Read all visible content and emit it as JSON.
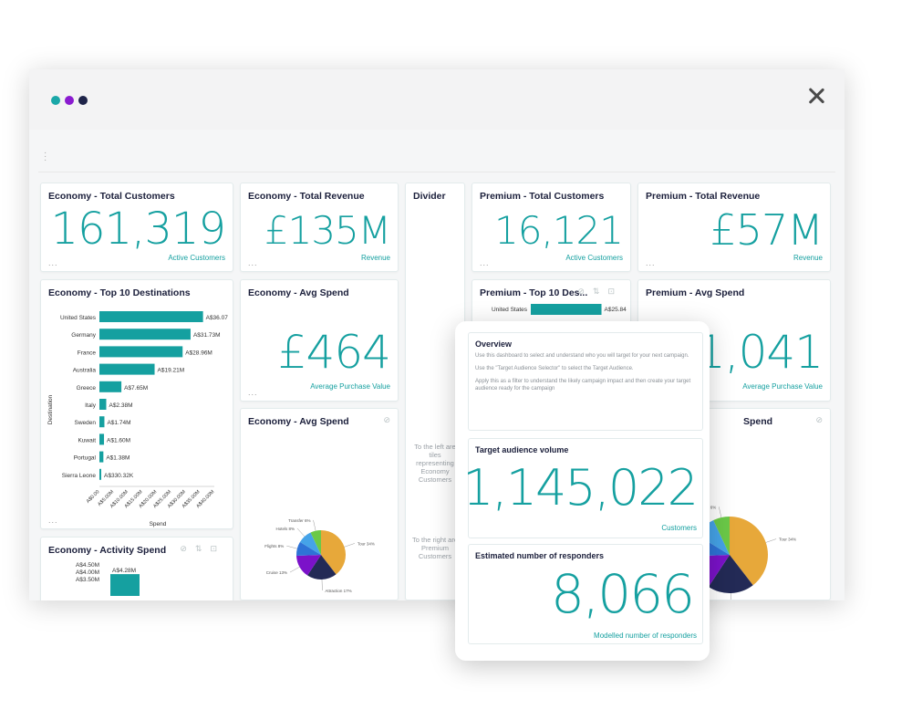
{
  "colors": {
    "teal": "#15a0a0",
    "dot1": "#1aa7a8",
    "dot2": "#8a1bd0",
    "dot3": "#1e2449",
    "navy": "#1b1f3b"
  },
  "window": {
    "more_icon": "vertical-ellipsis-icon",
    "close_icon": "close-icon"
  },
  "tiles": {
    "eco_total_customers": {
      "title": "Economy - Total Customers",
      "value": "161,319",
      "label": "Active Customers",
      "more": "..."
    },
    "eco_total_revenue": {
      "title": "Economy - Total Revenue",
      "value": "£135M",
      "label": "Revenue",
      "more": "..."
    },
    "divider": {
      "title": "Divider",
      "left_note": [
        "To the left are",
        "tiles",
        "representing",
        "Economy",
        "Customers"
      ],
      "right_note": [
        "To the right are",
        "Premium",
        "Customers"
      ]
    },
    "prem_total_customers": {
      "title": "Premium - Total Customers",
      "value": "16,121",
      "label": "Active Customers",
      "more": "..."
    },
    "prem_total_revenue": {
      "title": "Premium - Total Revenue",
      "value": "£57M",
      "label": "Revenue",
      "more": "..."
    },
    "eco_top10": {
      "title": "Economy - Top 10 Destinations",
      "more": "..."
    },
    "eco_avg_spend": {
      "title": "Economy - Avg Spend",
      "value": "£464",
      "label": "Average Purchase Value",
      "more": "..."
    },
    "prem_top10": {
      "title": "Premium - Top 10 Des..."
    },
    "prem_avg_spend": {
      "title": "Premium - Avg Spend",
      "value": "1,041",
      "label": "Average Purchase Value"
    },
    "eco_avg_spend_pie": {
      "title": "Economy - Avg Spend"
    },
    "prem_avg_spend_pie": {
      "title": "Spend"
    },
    "eco_activity_spend": {
      "title": "Economy - Activity Spend"
    }
  },
  "chart_data": [
    {
      "type": "bar",
      "orientation": "horizontal",
      "categories": [
        "United States",
        "Germany",
        "France",
        "Australia",
        "Greece",
        "Italy",
        "Sweden",
        "Kuwait",
        "Portugal",
        "Sierra Leone"
      ],
      "values": [
        36.07,
        31.73,
        28.96,
        19.21,
        7.65,
        2.38,
        1.74,
        1.6,
        1.38,
        0.33032
      ],
      "data_labels": [
        "A$36.07",
        "A$31.73M",
        "A$28.96M",
        "A$19.21M",
        "A$7.65M",
        "A$2.38M",
        "A$1.74M",
        "A$1.60M",
        "A$1.38M",
        "A$330.32K"
      ],
      "xlabel": "Spend",
      "ylabel": "Destination",
      "x_ticks": [
        "A$0.00",
        "A$5.00M",
        "A$10.00M",
        "A$15.00M",
        "A$20.00M",
        "A$25.00M",
        "A$30.00M",
        "A$35.00M",
        "A$40.00M"
      ],
      "xlim": [
        0,
        40
      ]
    },
    {
      "type": "pie",
      "slices": [
        {
          "name": "Tour",
          "value": 34,
          "color": "#e7a83a"
        },
        {
          "name": "Attraction",
          "value": 17,
          "color": "#232a56"
        },
        {
          "name": "Cruise",
          "value": 13,
          "color": "#7b12c9"
        },
        {
          "name": "Flights",
          "value": 8,
          "color": "#2e73d6"
        },
        {
          "name": "Hotels",
          "value": 8,
          "color": "#45a3e8"
        },
        {
          "name": "Transfer",
          "value": 6,
          "color": "#6bc948"
        }
      ]
    },
    {
      "type": "bar",
      "orientation": "horizontal",
      "categories": [
        "United States"
      ],
      "values": [
        25.84
      ],
      "data_labels": [
        "A$25.84"
      ]
    },
    {
      "type": "bar",
      "y_ticks": [
        "A$4.50M",
        "A$4.00M",
        "A$3.50M"
      ],
      "values": [
        4.28
      ],
      "data_labels": [
        "A$4.28M"
      ]
    }
  ],
  "overlay": {
    "overview": {
      "title": "Overview",
      "lines": [
        "Use this dashboard to select and understand who you will target for your next campaign.",
        "Use the \"Target Audience Selector\" to select the Target Audience.",
        "Apply this as a filter to understand the likely campaign impact and then create your target",
        "audience ready for the campaign"
      ]
    },
    "target": {
      "title": "Target audience volume",
      "value": "1,145,022",
      "label": "Customers"
    },
    "responders": {
      "title": "Estimated number of responders",
      "value": "8,066",
      "label": "Modelled number of responders"
    }
  }
}
